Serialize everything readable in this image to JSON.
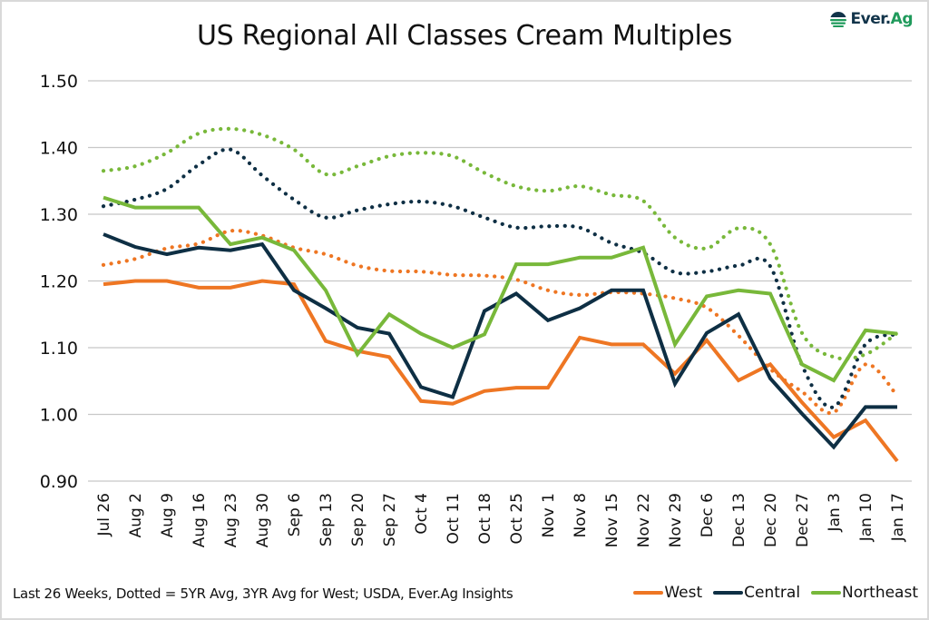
{
  "header": {
    "logo_text_main": "Ever.",
    "logo_text_accent": "Ag"
  },
  "footer": {
    "source_note": "Last 26 Weeks, Dotted = 5YR Avg, 3YR Avg for West; USDA, Ever.Ag Insights"
  },
  "colors": {
    "west": "#EE7623",
    "central": "#0E2F44",
    "northeast": "#78B83A",
    "grid": "#c8c8c8"
  },
  "chart_data": {
    "type": "line",
    "title": "US Regional All Classes Cream Multiples",
    "xlabel": "",
    "ylabel": "",
    "ylim": [
      0.9,
      1.5
    ],
    "yticks": [
      "0.90",
      "1.00",
      "1.10",
      "1.20",
      "1.30",
      "1.40",
      "1.50"
    ],
    "ytick_values": [
      0.9,
      1.0,
      1.1,
      1.2,
      1.3,
      1.4,
      1.5
    ],
    "grid": true,
    "legend_position": "bottom-right",
    "categories": [
      "Jul 26",
      "Aug 2",
      "Aug 9",
      "Aug 16",
      "Aug 23",
      "Aug 30",
      "Sep 6",
      "Sep 13",
      "Sep 20",
      "Sep 27",
      "Oct 4",
      "Oct 11",
      "Oct 18",
      "Oct 25",
      "Nov 1",
      "Nov 8",
      "Nov 15",
      "Nov 22",
      "Nov 29",
      "Dec 6",
      "Dec 13",
      "Dec 20",
      "Dec 27",
      "Jan 3",
      "Jan 10",
      "Jan 17"
    ],
    "series": [
      {
        "name": "West",
        "style": "solid",
        "color_key": "west",
        "in_legend": true,
        "values": [
          1.195,
          1.2,
          1.2,
          1.19,
          1.19,
          1.2,
          1.195,
          1.11,
          1.095,
          1.086,
          1.02,
          1.016,
          1.035,
          1.04,
          1.04,
          1.115,
          1.105,
          1.105,
          1.061,
          1.111,
          1.051,
          1.075,
          1.018,
          0.966,
          0.991,
          0.93
        ]
      },
      {
        "name": "Central",
        "style": "solid",
        "color_key": "central",
        "in_legend": true,
        "values": [
          1.27,
          1.251,
          1.24,
          1.25,
          1.246,
          1.255,
          1.186,
          1.159,
          1.13,
          1.121,
          1.041,
          1.026,
          1.155,
          1.181,
          1.141,
          1.159,
          1.186,
          1.186,
          1.046,
          1.122,
          1.15,
          1.054,
          1.001,
          0.951,
          1.011,
          1.011
        ]
      },
      {
        "name": "Northeast",
        "style": "solid",
        "color_key": "northeast",
        "in_legend": true,
        "values": [
          1.325,
          1.31,
          1.31,
          1.31,
          1.255,
          1.265,
          1.246,
          1.186,
          1.09,
          1.15,
          1.121,
          1.1,
          1.12,
          1.225,
          1.225,
          1.235,
          1.235,
          1.25,
          1.105,
          1.177,
          1.186,
          1.181,
          1.075,
          1.051,
          1.126,
          1.121
        ]
      },
      {
        "name": "West 3YR Avg",
        "style": "dotted",
        "color_key": "west",
        "in_legend": false,
        "values": [
          1.224,
          1.233,
          1.249,
          1.256,
          1.275,
          1.268,
          1.25,
          1.24,
          1.223,
          1.215,
          1.214,
          1.209,
          1.208,
          1.202,
          1.186,
          1.179,
          1.183,
          1.181,
          1.174,
          1.16,
          1.118,
          1.068,
          1.034,
          1.003,
          1.075,
          1.028
        ]
      },
      {
        "name": "Central 5YR Avg",
        "style": "dotted",
        "color_key": "central",
        "in_legend": false,
        "values": [
          1.312,
          1.322,
          1.338,
          1.374,
          1.397,
          1.358,
          1.322,
          1.295,
          1.306,
          1.315,
          1.319,
          1.312,
          1.295,
          1.28,
          1.282,
          1.28,
          1.257,
          1.242,
          1.213,
          1.214,
          1.223,
          1.222,
          1.074,
          1.011,
          1.105,
          1.12
        ]
      },
      {
        "name": "Northeast 5YR Avg",
        "style": "dotted",
        "color_key": "northeast",
        "in_legend": false,
        "values": [
          1.365,
          1.372,
          1.392,
          1.421,
          1.428,
          1.419,
          1.397,
          1.36,
          1.372,
          1.387,
          1.392,
          1.387,
          1.362,
          1.342,
          1.335,
          1.342,
          1.329,
          1.32,
          1.265,
          1.249,
          1.279,
          1.255,
          1.122,
          1.086,
          1.09,
          1.122
        ]
      }
    ]
  }
}
